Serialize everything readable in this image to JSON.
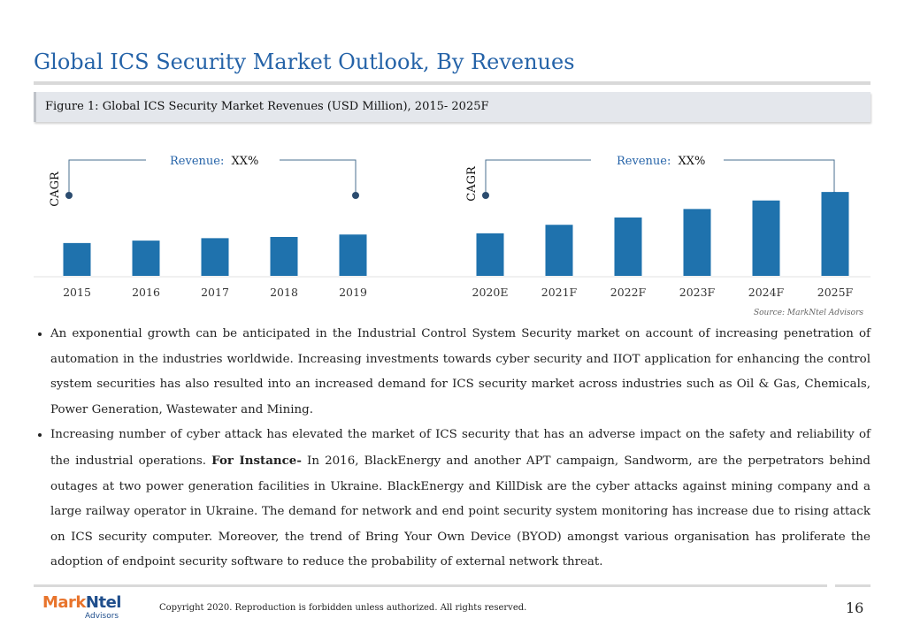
{
  "page": {
    "title": "Global ICS Security Market Outlook, By Revenues",
    "figure_caption": "Figure 1: Global ICS Security Market Revenues (USD Million), 2015- 2025F",
    "source": "Source: MarkNtel Advisors",
    "page_number": "16",
    "copyright": "Copyright 2020. Reproduction is forbidden unless authorized. All rights reserved."
  },
  "logo": {
    "brand_mark": "Mark",
    "brand_ntel": "Ntel",
    "subtitle": "Advisors",
    "colors": {
      "mark": "#e8742c",
      "ntel": "#1f4e8c"
    }
  },
  "annotations": [
    {
      "side_label": "CAGR",
      "label_prefix": "Revenue:",
      "label_value": "XX%"
    },
    {
      "side_label": "CAGR",
      "label_prefix": "Revenue:",
      "label_value": "XX%"
    }
  ],
  "chart_data": {
    "type": "bar",
    "categories": [
      "2015",
      "2016",
      "2017",
      "2018",
      "2019",
      "2020E",
      "2021F",
      "2022F",
      "2023F",
      "2024F",
      "2025F"
    ],
    "values": [
      27,
      29,
      31,
      32,
      34,
      35,
      42,
      48,
      55,
      62,
      69
    ],
    "bar_color": "#1f72ad",
    "ylim": [
      0,
      80
    ],
    "grid": false,
    "y_axis_labels": false
  },
  "bullets": [
    {
      "text": "An exponential growth can be anticipated in the Industrial Control System Security market on account of increasing penetration of automation in the industries worldwide. Increasing investments towards cyber security and IIOT application for enhancing the control system securities has also resulted into an increased demand for ICS security market across industries such as Oil & Gas, Chemicals, Power Generation, Wastewater and Mining."
    },
    {
      "text_before": "Increasing number of cyber attack has elevated the market of ICS security that has an adverse impact on the safety and reliability of the industrial operations. ",
      "bold": "For Instance-",
      "text_after": " In 2016, BlackEnergy and another APT campaign, Sandworm, are the perpetrators behind outages at two power generation facilities in Ukraine. BlackEnergy and KillDisk are the cyber attacks against mining company and a large railway operator in Ukraine. The demand for network and end point security system monitoring has increase due to rising attack on ICS security computer. Moreover, the trend of Bring Your Own Device (BYOD) amongst various organisation has proliferate the adoption of endpoint security software to reduce the probability of external network threat."
    }
  ]
}
